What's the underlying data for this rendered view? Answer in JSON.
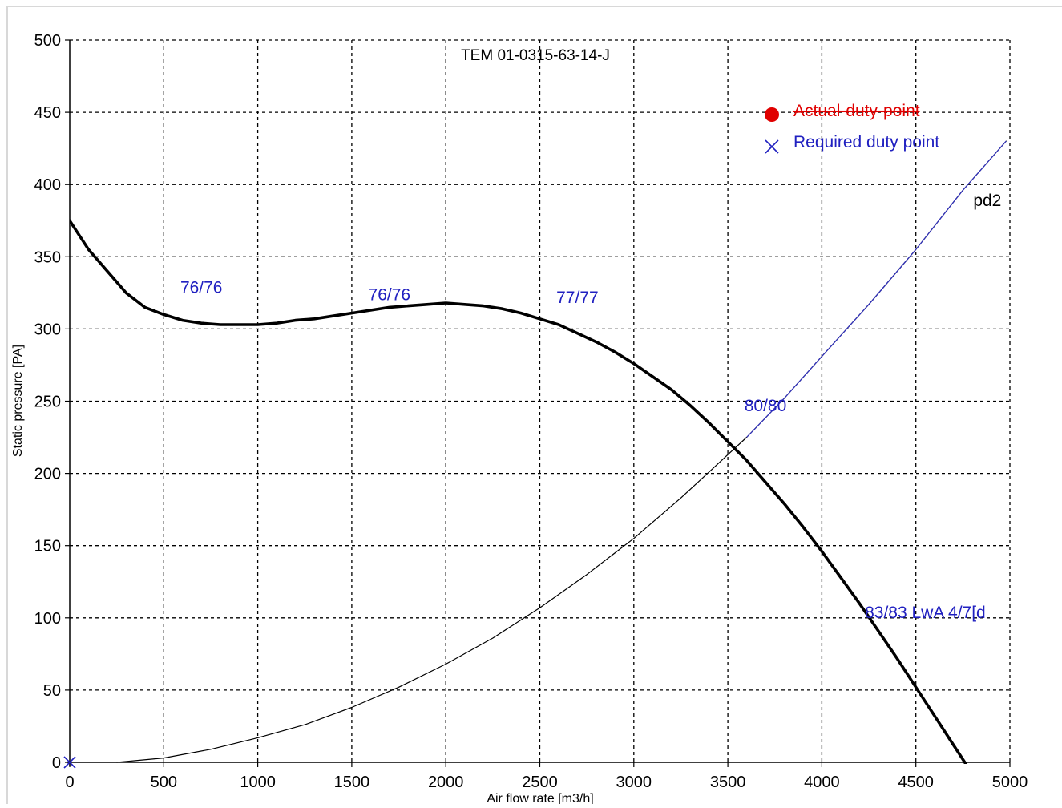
{
  "chart_data": {
    "type": "line",
    "title": "TEM 01-0315-63-14-J",
    "xlabel": "Air flow rate [m3/h]",
    "ylabel": "Static pressure [PA]",
    "xlim": [
      0,
      5000
    ],
    "ylim": [
      0,
      500
    ],
    "x_ticks": [
      "0",
      "500",
      "1000",
      "1500",
      "2000",
      "2500",
      "3000",
      "3500",
      "4000",
      "4500",
      "5000"
    ],
    "y_ticks": [
      "0",
      "50",
      "100",
      "150",
      "200",
      "250",
      "300",
      "350",
      "400",
      "450",
      "500"
    ],
    "grid": true,
    "legend_position": "top-right",
    "legend": [
      {
        "name": "Actual-duty-point",
        "marker": "circle",
        "color": "#e00000"
      },
      {
        "name": "Required duty point",
        "marker": "x",
        "color": "#2020c0"
      }
    ],
    "series": [
      {
        "name": "",
        "style": "fan-curve",
        "color": "#000000",
        "points": [
          [
            0,
            375
          ],
          [
            100,
            355
          ],
          [
            200,
            340
          ],
          [
            300,
            325
          ],
          [
            400,
            315
          ],
          [
            500,
            310
          ],
          [
            600,
            306
          ],
          [
            700,
            304
          ],
          [
            800,
            303
          ],
          [
            900,
            303
          ],
          [
            1000,
            303
          ],
          [
            1100,
            304
          ],
          [
            1200,
            306
          ],
          [
            1300,
            307
          ],
          [
            1400,
            309
          ],
          [
            1500,
            311
          ],
          [
            1600,
            313
          ],
          [
            1700,
            315
          ],
          [
            1800,
            316
          ],
          [
            1900,
            317
          ],
          [
            2000,
            318
          ],
          [
            2100,
            317
          ],
          [
            2200,
            316
          ],
          [
            2300,
            314
          ],
          [
            2400,
            311
          ],
          [
            2500,
            307
          ],
          [
            2600,
            303
          ],
          [
            2700,
            297
          ],
          [
            2800,
            291
          ],
          [
            2900,
            284
          ],
          [
            3000,
            276
          ],
          [
            3100,
            267
          ],
          [
            3200,
            258
          ],
          [
            3300,
            247
          ],
          [
            3400,
            235
          ],
          [
            3500,
            222
          ],
          [
            3600,
            209
          ],
          [
            3700,
            194
          ],
          [
            3800,
            179
          ],
          [
            3900,
            163
          ],
          [
            4000,
            146
          ],
          [
            4100,
            128
          ],
          [
            4200,
            110
          ],
          [
            4300,
            91
          ],
          [
            4400,
            72
          ],
          [
            4500,
            52
          ],
          [
            4600,
            32
          ],
          [
            4700,
            12
          ],
          [
            4800,
            -8
          ],
          [
            4900,
            -28
          ],
          [
            5000,
            -10
          ]
        ]
      },
      {
        "name": "pd2",
        "style": "system-curve",
        "color": "#000000",
        "points": [
          [
            250,
            0
          ],
          [
            500,
            3
          ],
          [
            750,
            9
          ],
          [
            1000,
            17
          ],
          [
            1250,
            26
          ],
          [
            1500,
            38
          ],
          [
            1750,
            52
          ],
          [
            2000,
            68
          ],
          [
            2250,
            86
          ],
          [
            2500,
            107
          ],
          [
            2750,
            130
          ],
          [
            3000,
            155
          ],
          [
            3250,
            183
          ],
          [
            3500,
            213
          ],
          [
            3600,
            225
          ],
          [
            3800,
            252
          ],
          [
            4000,
            281
          ],
          [
            4250,
            317
          ],
          [
            4500,
            355
          ],
          [
            4750,
            396
          ],
          [
            4980,
            430
          ]
        ]
      }
    ],
    "required_duty_point": {
      "x": 0,
      "y": 0
    },
    "annotations": [
      {
        "text": "76/76",
        "x": 700,
        "y": 325,
        "color": "#2020c0"
      },
      {
        "text": "76/76",
        "x": 1700,
        "y": 320,
        "color": "#2020c0"
      },
      {
        "text": "77/77",
        "x": 2700,
        "y": 318,
        "color": "#2020c0"
      },
      {
        "text": "80/80",
        "x": 3700,
        "y": 243,
        "color": "#2020c0"
      },
      {
        "text": "83/83 LwA 4/7[d",
        "x": 4550,
        "y": 100,
        "color": "#2020c0"
      },
      {
        "text": "pd2",
        "x": 4880,
        "y": 385,
        "color": "#000000"
      }
    ]
  }
}
